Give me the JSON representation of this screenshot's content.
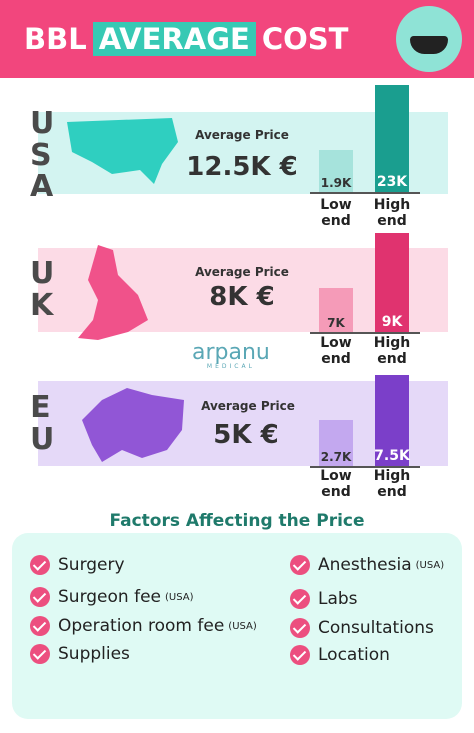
{
  "header": {
    "title_left": "BBL",
    "title_highlight": "AVERAGE",
    "title_right": "COST"
  },
  "regions": [
    {
      "code": "USA",
      "price_label": "Average Price",
      "price": "12.5K €",
      "low": "1.9K",
      "low_label": "Low end",
      "high": "23K",
      "high_label": "High end"
    },
    {
      "code": "UK",
      "price_label": "Average Price",
      "price": "8K €",
      "low": "7K",
      "low_label": "Low end",
      "high": "9K",
      "high_label": "High end"
    },
    {
      "code": "EU",
      "price_label": "Average Price",
      "price": "5K €",
      "low": "2.7K",
      "low_label": "Low end",
      "high": "7.5K",
      "high_label": "High end"
    }
  ],
  "logo": {
    "name": "arpanu",
    "sub": "MEDICAL"
  },
  "factors": {
    "title": "Factors Affecting the Price",
    "items": [
      {
        "text": "Surgery"
      },
      {
        "text": "Surgeon fee",
        "note": "(USA)"
      },
      {
        "text": "Operation room fee",
        "note": "(USA)"
      },
      {
        "text": "Supplies"
      },
      {
        "text": "Anesthesia",
        "note": "(USA)"
      },
      {
        "text": "Labs"
      },
      {
        "text": "Consultations"
      },
      {
        "text": "Location"
      }
    ]
  }
}
